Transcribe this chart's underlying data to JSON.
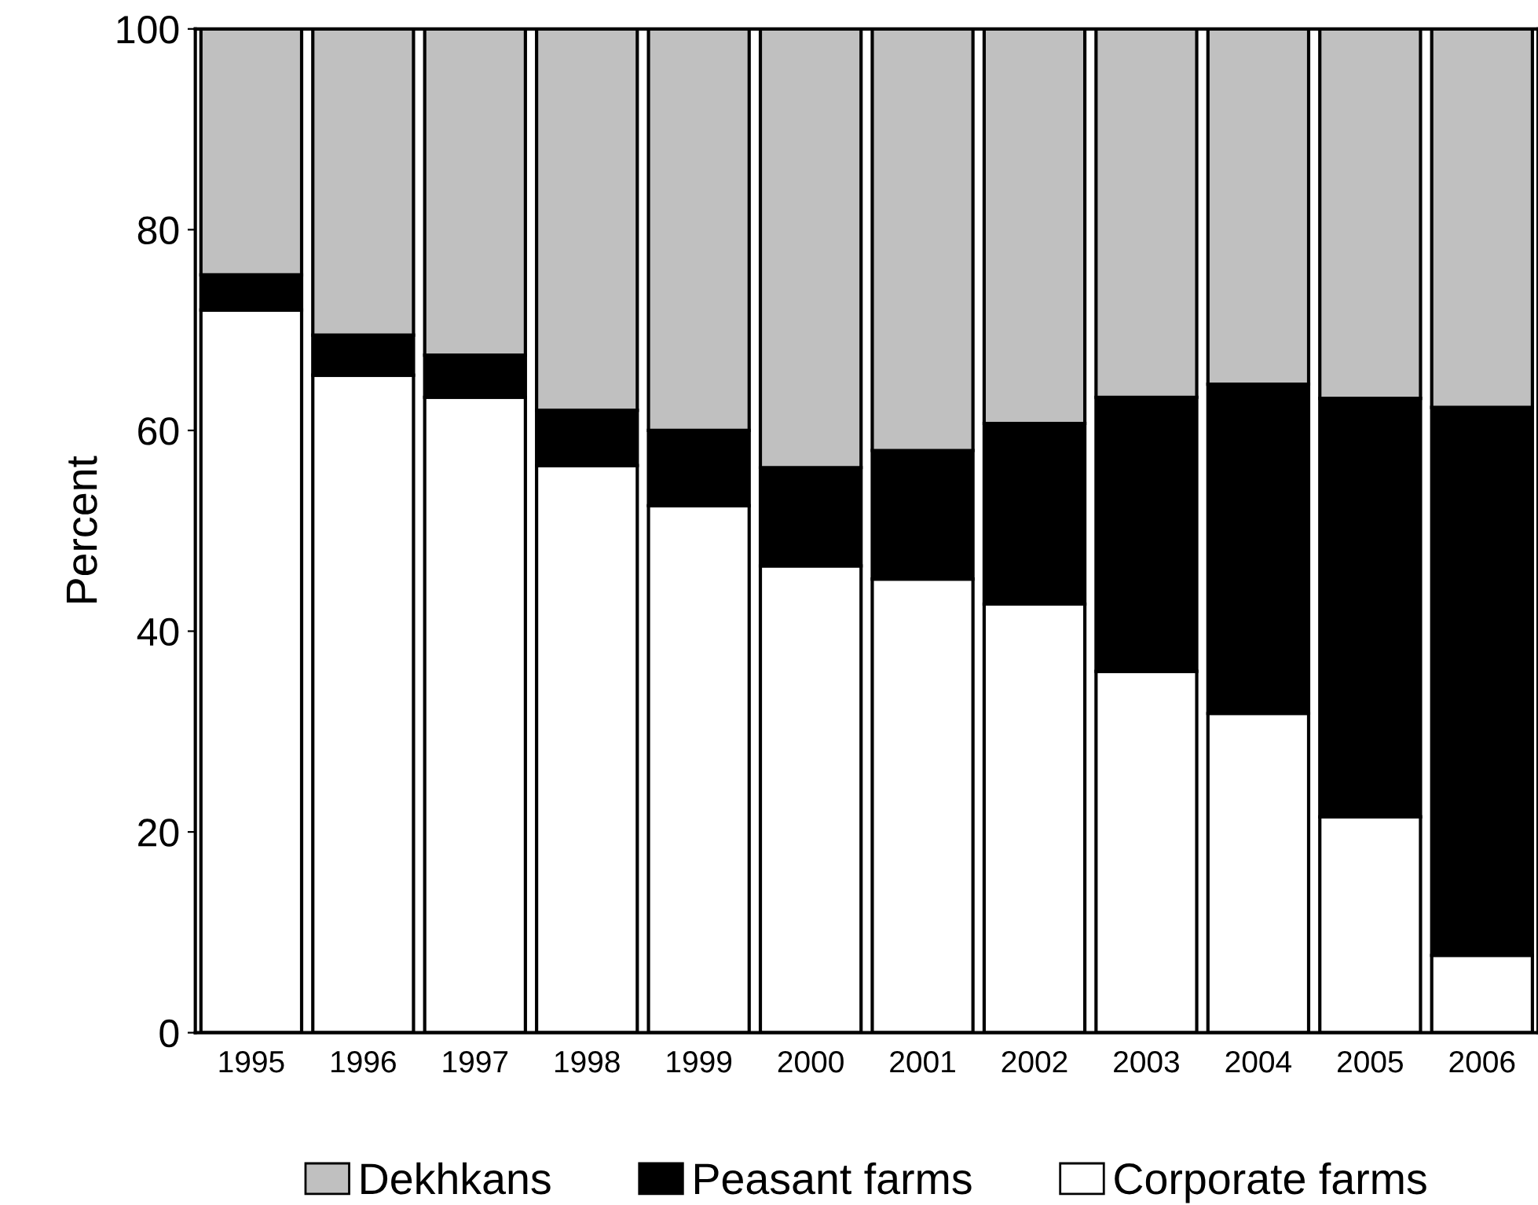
{
  "chart_data": {
    "type": "bar",
    "stacked": true,
    "ylabel": "Percent",
    "categories": [
      "1995",
      "1996",
      "1997",
      "1998",
      "1999",
      "2000",
      "2001",
      "2002",
      "2003",
      "2004",
      "2005",
      "2006"
    ],
    "series": [
      {
        "name": "Corporate farms",
        "color": "#ffffff",
        "values": [
          72,
          65.5,
          63.3,
          56.5,
          52.5,
          46.5,
          45.2,
          42.7,
          36,
          31.8,
          21.5,
          7.7
        ]
      },
      {
        "name": "Peasant farms",
        "color": "#000000",
        "values": [
          3.5,
          4,
          4.2,
          5.5,
          7.5,
          9.8,
          12.8,
          18,
          27.3,
          32.8,
          41.7,
          54.6
        ]
      },
      {
        "name": "Dekhkans",
        "color": "#c0c0c0",
        "values": [
          24.5,
          30.5,
          32.5,
          38,
          40,
          43.7,
          42,
          39.3,
          36.7,
          35.4,
          36.8,
          37.7
        ]
      }
    ],
    "ylim": [
      0,
      100
    ],
    "yticks": [
      0,
      20,
      40,
      60,
      80,
      100
    ],
    "grid": false,
    "legend": "bottom"
  }
}
